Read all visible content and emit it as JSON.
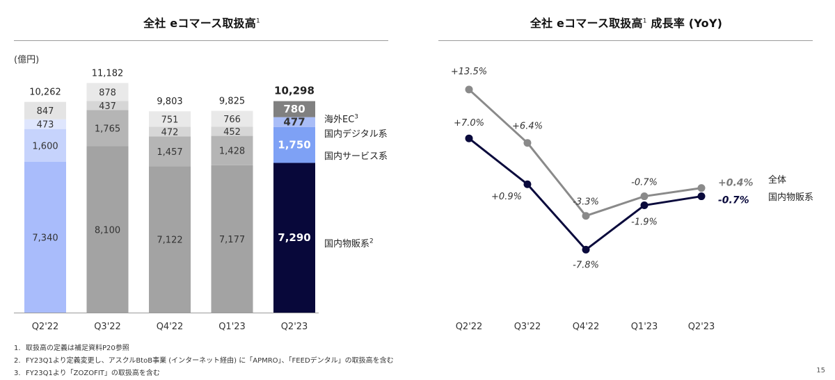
{
  "page_number": "15",
  "footnotes": [
    {
      "num": "1.",
      "text": "取扱高の定義は補足資料P20参照"
    },
    {
      "num": "2.",
      "text": "FY23Q1より定義変更し、アスクルBtoB事業 (インターネット経由) に「APMRO」、「FEEDデンタル」の取扱高を含む"
    },
    {
      "num": "3.",
      "text": "FY23Q1より「ZOZOFIT」の取扱高を含む"
    }
  ],
  "chart_data": [
    {
      "type": "bar",
      "title": "全社 eコマース取扱高",
      "title_sup": "1",
      "unit_label": "(億円)",
      "categories": [
        "Q2'22",
        "Q3'22",
        "Q4'22",
        "Q1'23",
        "Q2'23"
      ],
      "series": [
        {
          "name": "国内物販系",
          "sup": "2",
          "values": [
            7340,
            8100,
            7122,
            7177,
            7290
          ],
          "colors": [
            "#a9bcfb",
            "#a3a3a3",
            "#a3a3a3",
            "#a3a3a3",
            "#08083a"
          ]
        },
        {
          "name": "国内サービス系",
          "sup": "",
          "values": [
            1600,
            1765,
            1457,
            1428,
            1750
          ],
          "colors": [
            "#c6d3fc",
            "#b5b5b5",
            "#b5b5b5",
            "#b5b5b5",
            "#7ea1f5"
          ]
        },
        {
          "name": "国内デジタル系",
          "sup": "",
          "values": [
            473,
            437,
            472,
            452,
            477
          ],
          "colors": [
            "#dfe6fd",
            "#d6d6d6",
            "#d6d6d6",
            "#d6d6d6",
            "#a9bdf7"
          ]
        },
        {
          "name": "海外EC",
          "sup": "3",
          "values": [
            847,
            878,
            751,
            766,
            780
          ],
          "colors": [
            "#e4e4e4",
            "#e9e9e9",
            "#e9e9e9",
            "#e9e9e9",
            "#808080"
          ]
        }
      ],
      "totals": [
        10262,
        11182,
        9803,
        9825,
        10298
      ],
      "ylim": [
        0,
        11500
      ]
    },
    {
      "type": "line",
      "title": "全社 eコマース取扱高",
      "title_sup": "1",
      "title_suffix": "成長率 (YoY)",
      "categories": [
        "Q2'22",
        "Q3'22",
        "Q4'22",
        "Q1'23",
        "Q2'23"
      ],
      "series": [
        {
          "name": "全体",
          "color": "#8a8a8a",
          "values": [
            13.5,
            6.4,
            -3.3,
            -0.7,
            0.4
          ],
          "labels": [
            "+13.5%",
            "+6.4%",
            "-3.3%",
            "-0.7%",
            "+0.4%"
          ]
        },
        {
          "name": "国内物販系",
          "color": "#0a0a3c",
          "values": [
            7.0,
            0.9,
            -7.8,
            -1.9,
            -0.7
          ],
          "labels": [
            "+7.0%",
            "+0.9%",
            "-7.8%",
            "-1.9%",
            "-0.7%"
          ]
        }
      ],
      "ylim": [
        -8.5,
        14.5
      ]
    }
  ]
}
